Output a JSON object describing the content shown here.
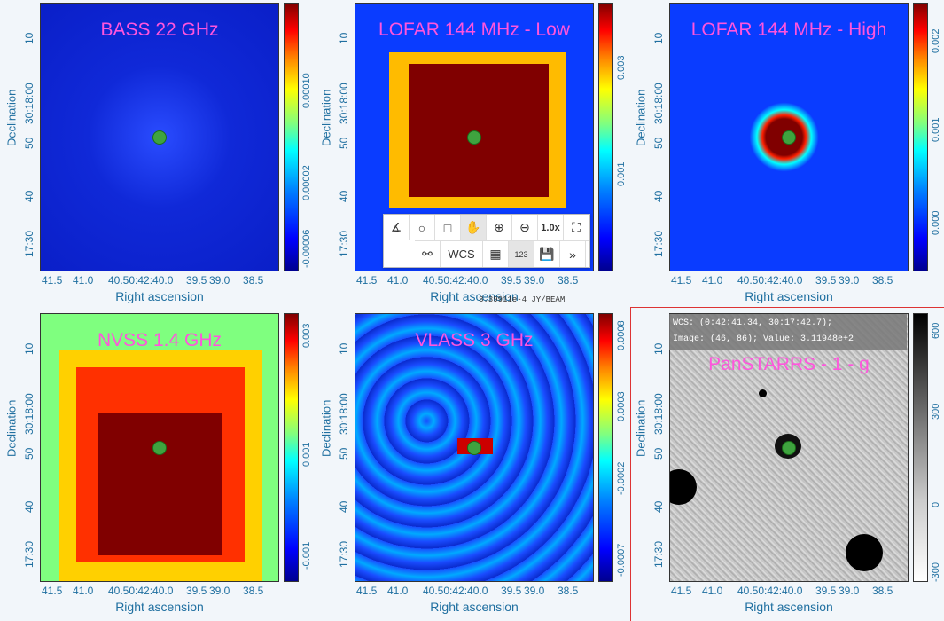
{
  "xlabel": "Right ascension",
  "ylabel": "Declination",
  "xticks": [
    "41.5",
    "41.0",
    "40.50:42:40.0",
    "39.5",
    "39.0",
    "38.5"
  ],
  "yticks": [
    "10",
    "30:18:00",
    "50",
    "40",
    "17:30"
  ],
  "panels": [
    {
      "title": "BASS 22 GHz",
      "cticks": [
        "0.00010",
        "0.00002",
        "-0.00006"
      ]
    },
    {
      "title": "LOFAR 144 MHz - Low",
      "cticks": [
        "0.003",
        "0.001"
      ]
    },
    {
      "title": "LOFAR 144 MHz - High",
      "cticks": [
        "0.002",
        "0.001",
        "0.000"
      ]
    },
    {
      "title": "NVSS 1.4 GHz",
      "cticks": [
        "0.003",
        "0.001",
        "-0.001"
      ]
    },
    {
      "title": "VLASS 3 GHz",
      "cticks": [
        "0.0008",
        "0.0003",
        "-0.0002",
        "-0.0007"
      ]
    },
    {
      "title": "PanSTARRS - 1 - g",
      "cticks": [
        "600",
        "300",
        "0",
        "-300"
      ]
    }
  ],
  "toolbar": {
    "zoom_label": "1.0x",
    "wcs_label": "WCS",
    "num_label": "123"
  },
  "status_text": "3.39911e-4 JY/BEAM",
  "info": {
    "wcs": "WCS: (0:42:41.34, 30:17:42.7);",
    "image": "Image: (46, 86); Value:  3.11948e+2"
  },
  "colors": {
    "title": "#ff55dd",
    "axis": "#1f6fa0",
    "source": "#3fa33f"
  }
}
